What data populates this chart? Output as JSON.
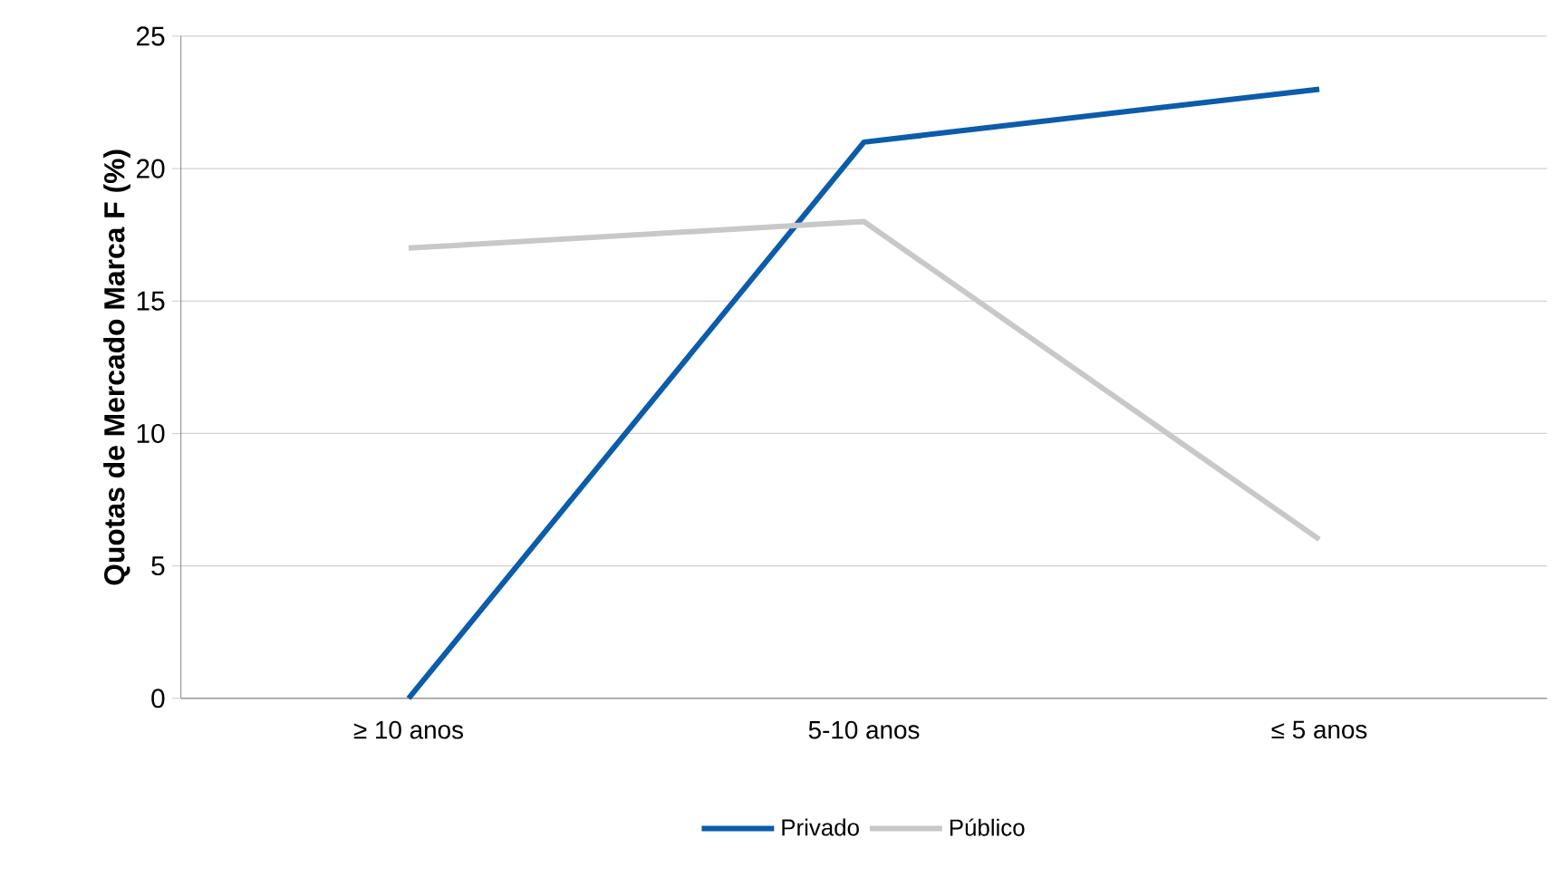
{
  "chart_data": {
    "type": "line",
    "ylabel": "Quotas de Mercado Marca F (%)",
    "categories": [
      "≥ 10 anos",
      "5-10 anos",
      "≤ 5 anos"
    ],
    "series": [
      {
        "name": "Privado",
        "color": "#0b5cab",
        "values": [
          0,
          21,
          23
        ]
      },
      {
        "name": "Público",
        "color": "#c8c8c8",
        "values": [
          17,
          18,
          6
        ]
      }
    ],
    "ylim": [
      0,
      25
    ],
    "yticks": [
      0,
      5,
      10,
      15,
      20,
      25
    ],
    "grid": "y",
    "legend": "bottom",
    "marker": "none",
    "line_style": "solid"
  }
}
